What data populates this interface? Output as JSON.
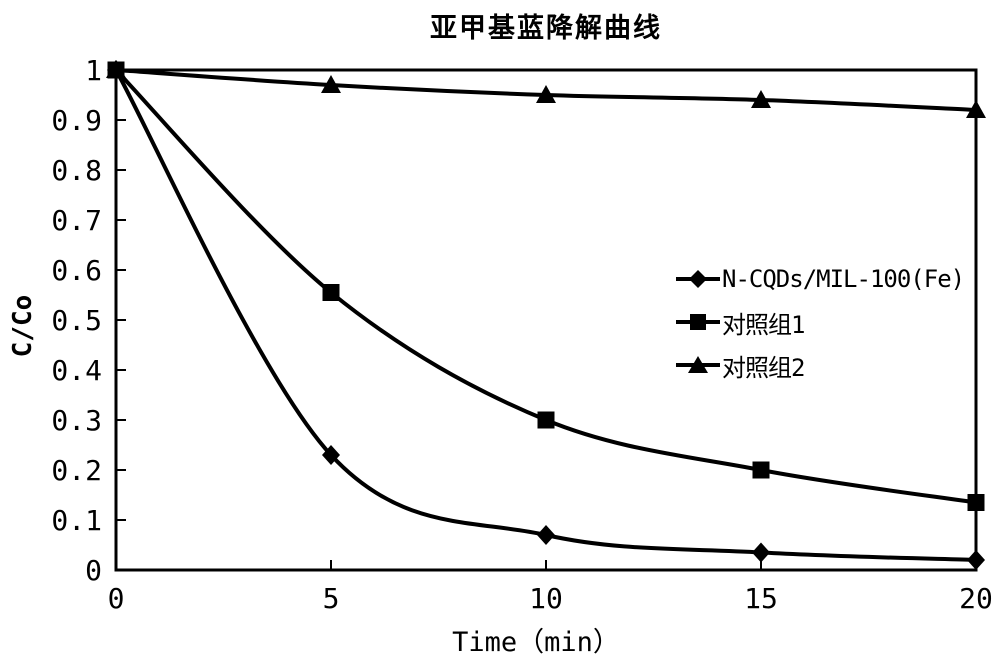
{
  "chart_data": {
    "type": "line",
    "title": "亚甲基蓝降解曲线",
    "xlabel": "Time（min）",
    "ylabel": "C/Co",
    "x": [
      0,
      5,
      10,
      15,
      20
    ],
    "xlim": [
      0,
      20
    ],
    "ylim": [
      0,
      1
    ],
    "x_ticks": [
      0,
      5,
      10,
      15,
      20
    ],
    "x_tick_labels": [
      "0",
      "5",
      "10",
      "15",
      "20"
    ],
    "y_ticks": [
      0,
      0.1,
      0.2,
      0.3,
      0.4,
      0.5,
      0.6,
      0.7,
      0.8,
      0.9,
      1
    ],
    "y_tick_labels": [
      "0",
      "0.1",
      "0.2",
      "0.3",
      "0.4",
      "0.5",
      "0.6",
      "0.7",
      "0.8",
      "0.9",
      "1"
    ],
    "grid": false,
    "frame": "box",
    "legend_position": "inside-right-middle",
    "line_color": "#000000",
    "background": "#ffffff",
    "series": [
      {
        "name": "N-CQDs/MIL-100(Fe)",
        "marker": "diamond",
        "color": "#000000",
        "values": [
          1,
          0.23,
          0.07,
          0.035,
          0.02
        ]
      },
      {
        "name": "对照组1",
        "marker": "square",
        "color": "#000000",
        "values": [
          1,
          0.555,
          0.3,
          0.2,
          0.135
        ]
      },
      {
        "name": "对照组2",
        "marker": "triangle",
        "color": "#000000",
        "values": [
          1,
          0.97,
          0.95,
          0.94,
          0.92
        ]
      }
    ]
  }
}
